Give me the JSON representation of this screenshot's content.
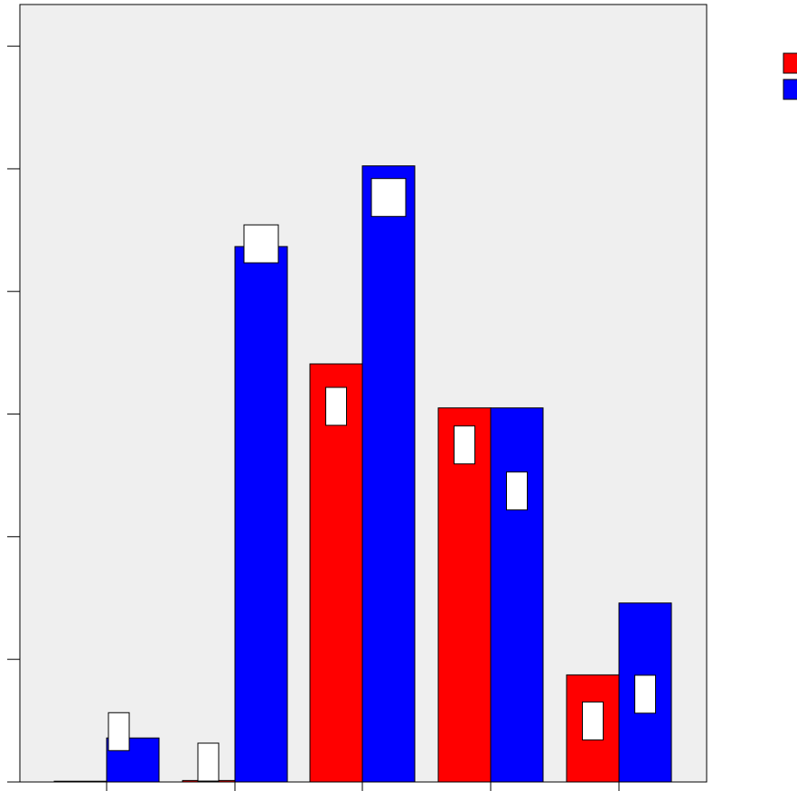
{
  "chart_data": {
    "type": "bar",
    "categories": [
      "",
      "",
      "",
      "",
      ""
    ],
    "series": [
      {
        "color": "#ff0000",
        "values": [
          0.05,
          0.1,
          28.5,
          25.5,
          7.3
        ]
      },
      {
        "color": "#0000ff",
        "values": [
          3.0,
          36.5,
          42.0,
          25.5,
          12.2
        ]
      }
    ],
    "ylim": [
      0,
      53
    ],
    "y_ticks": [
      0,
      8.36,
      16.72,
      25.08,
      33.44,
      41.8,
      50.16
    ],
    "grid": false,
    "legend": {
      "placement": "top-right",
      "entries": [
        "",
        ""
      ]
    },
    "plot_background": "#efefef"
  }
}
